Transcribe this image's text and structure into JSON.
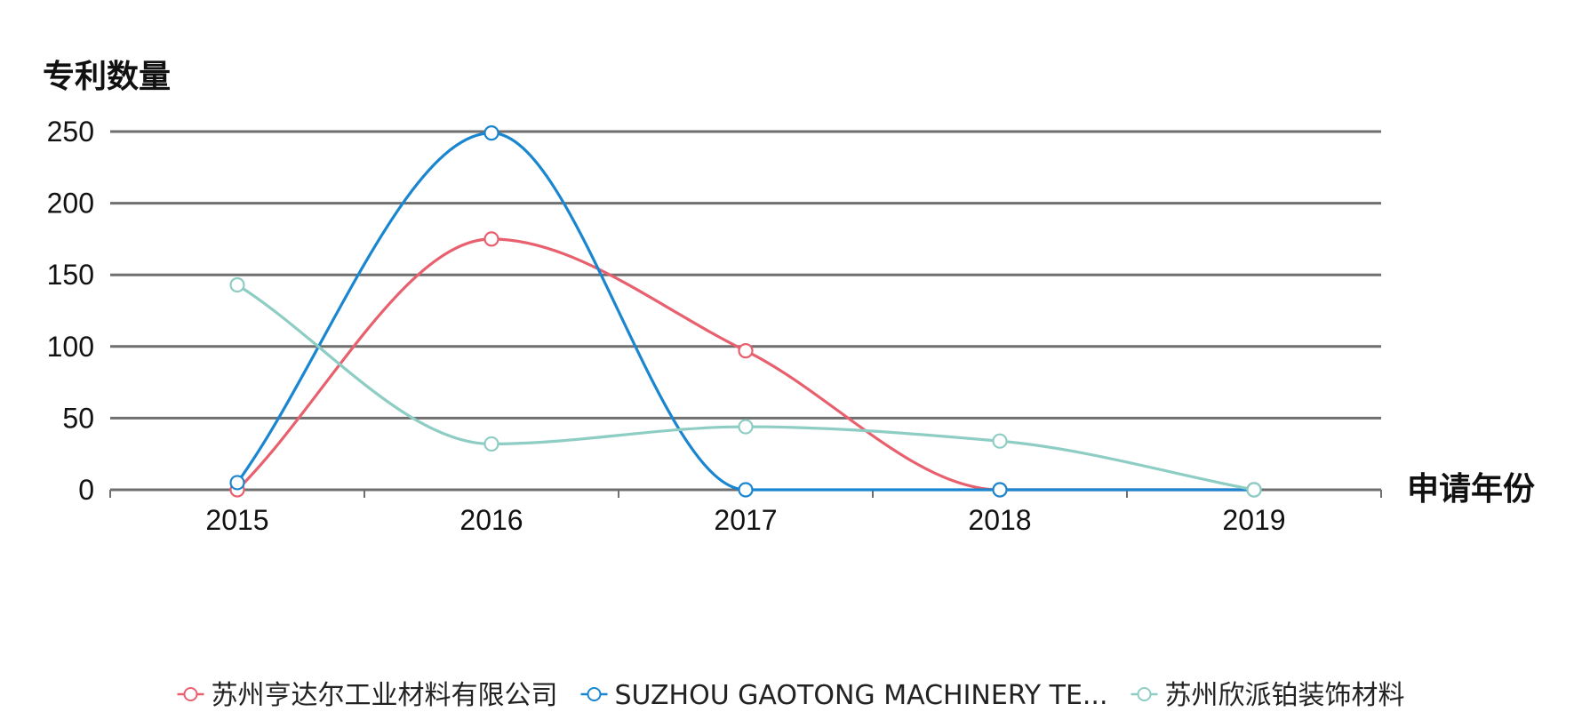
{
  "chart_data": {
    "type": "line",
    "title": "",
    "xlabel": "申请年份",
    "ylabel": "专利数量",
    "categories": [
      "2015",
      "2016",
      "2017",
      "2018",
      "2019"
    ],
    "ylim": [
      0,
      250
    ],
    "yticks": [
      0,
      50,
      100,
      150,
      200,
      250
    ],
    "grid": true,
    "smooth": true,
    "legend_position": "bottom",
    "series": [
      {
        "name": "苏州亨达尔工业材料有限公司",
        "color": "#e8606e",
        "values": [
          0,
          175,
          97,
          0,
          0
        ]
      },
      {
        "name": "SUZHOU GAOTONG MACHINERY TE...",
        "color": "#1a86d0",
        "values": [
          5,
          249,
          0,
          0,
          0
        ]
      },
      {
        "name": "苏州欣派铂装饰材料",
        "color": "#8ecdc4",
        "values": [
          143,
          32,
          44,
          34,
          0
        ]
      }
    ]
  }
}
